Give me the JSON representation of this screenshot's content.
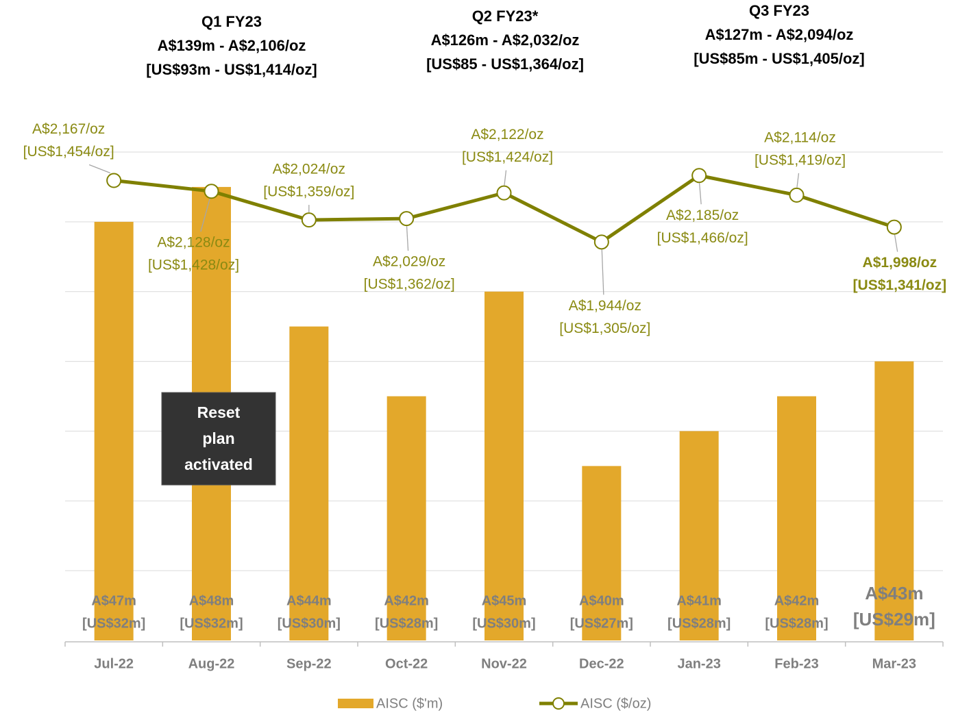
{
  "chart_data": {
    "type": "bar_line",
    "categories": [
      "Jul-22",
      "Aug-22",
      "Sep-22",
      "Oct-22",
      "Nov-22",
      "Dec-22",
      "Jan-23",
      "Feb-23",
      "Mar-23"
    ],
    "ylim": [
      35,
      49
    ],
    "yticks": [
      35,
      37,
      39,
      41,
      43,
      45,
      47,
      49
    ],
    "y2lim": [
      500,
      2270
    ],
    "grid": true,
    "series": [
      {
        "name": "AISC ($'m)",
        "type": "bar",
        "color": "#e3a82b",
        "values": [
          47,
          48,
          44,
          42,
          45,
          40,
          41,
          42,
          43
        ],
        "value_labels": [
          "A$47m",
          "A$48m",
          "A$44m",
          "A$42m",
          "A$45m",
          "A$40m",
          "A$41m",
          "A$42m",
          "A$43m"
        ],
        "usd_labels": [
          "[US$32m]",
          "[US$32m]",
          "[US$30m]",
          "[US$28m]",
          "[US$30m]",
          "[US$27m]",
          "[US$28m]",
          "[US$28m]",
          "[US$29m]"
        ]
      },
      {
        "name": "AISC ($/oz)",
        "type": "line",
        "axis": "y2",
        "color": "#7f8000",
        "values": [
          2167,
          2128,
          2024,
          2029,
          2122,
          1944,
          2185,
          2114,
          1998
        ],
        "value_labels": [
          "A$2,167/oz",
          "A$2,128/oz",
          "A$2,024/oz",
          "A$2,029/oz",
          "A$2,122/oz",
          "A$1,944/oz",
          "A$2,185/oz",
          "A$2,114/oz",
          "A$1,998/oz"
        ],
        "usd_labels": [
          "[US$1,454/oz]",
          "[US$1,428/oz]",
          "[US$1,359/oz]",
          "[US$1,362/oz]",
          "[US$1,424/oz]",
          "[US$1,305/oz]",
          "[US$1,466/oz]",
          "[US$1,419/oz]",
          "[US$1,341/oz]"
        ]
      }
    ],
    "quarters": [
      {
        "lines": [
          "Q1 FY23",
          "A$139m - A$2,106/oz",
          "[US$93m - US$1,414/oz]"
        ]
      },
      {
        "lines": [
          "Q2 FY23*",
          "A$126m - A$2,032/oz",
          "[US$85 - US$1,364/oz]"
        ]
      },
      {
        "lines": [
          "Q3 FY23",
          "A$127m - A$2,094/oz",
          "[US$85m - US$1,405/oz]"
        ]
      }
    ],
    "annotation": [
      "Reset",
      "plan",
      "activated"
    ]
  }
}
